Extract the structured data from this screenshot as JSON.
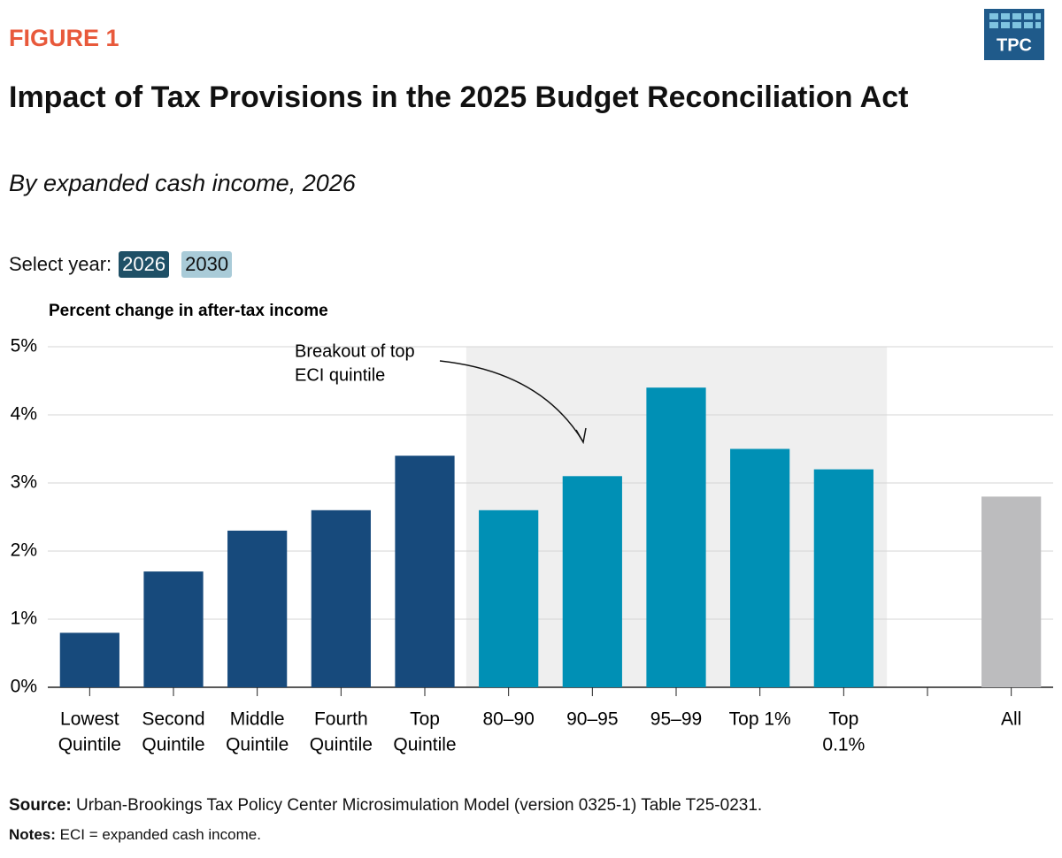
{
  "figure_label": "FIGURE 1",
  "logo": "TPC",
  "title": "Impact of Tax Provisions in the 2025 Budget Reconciliation Act",
  "subtitle": "By expanded cash income, 2026",
  "year_selector": {
    "label": "Select year:",
    "options": [
      "2026",
      "2030"
    ]
  },
  "chart_data": {
    "type": "bar",
    "y_axis_label": "Percent change in after-tax income",
    "annotation": [
      "Breakout of top",
      "ECI quintile"
    ],
    "categories": [
      [
        "Lowest",
        "Quintile"
      ],
      [
        "Second",
        "Quintile"
      ],
      [
        "Middle",
        "Quintile"
      ],
      [
        "Fourth",
        "Quintile"
      ],
      [
        "Top",
        "Quintile"
      ],
      [
        "80–90"
      ],
      [
        "90–95"
      ],
      [
        "95–99"
      ],
      [
        "Top 1%"
      ],
      [
        "Top",
        "0.1%"
      ],
      null,
      [
        "All"
      ]
    ],
    "values": [
      0.8,
      1.7,
      2.3,
      2.6,
      3.4,
      2.6,
      3.1,
      4.4,
      3.5,
      3.2,
      null,
      2.8
    ],
    "colors": [
      "#174a7c",
      "#174a7c",
      "#174a7c",
      "#174a7c",
      "#174a7c",
      "#0090b5",
      "#0090b5",
      "#0090b5",
      "#0090b5",
      "#0090b5",
      null,
      "#bcbcbe"
    ],
    "ylim": [
      0,
      5
    ],
    "yticks": [
      {
        "value": 0,
        "label": "0%"
      },
      {
        "value": 1,
        "label": "1%"
      },
      {
        "value": 2,
        "label": "2%"
      },
      {
        "value": 3,
        "label": "3%"
      },
      {
        "value": 4,
        "label": "4%"
      },
      {
        "value": 5,
        "label": "5%"
      }
    ],
    "grid": true
  },
  "footer": {
    "source_label": "Source:",
    "source": "Urban-Brookings Tax Policy Center Microsimulation Model (version 0325-1) Table T25-0231.",
    "notes_label": "Notes:",
    "notes": "ECI = expanded cash income."
  }
}
